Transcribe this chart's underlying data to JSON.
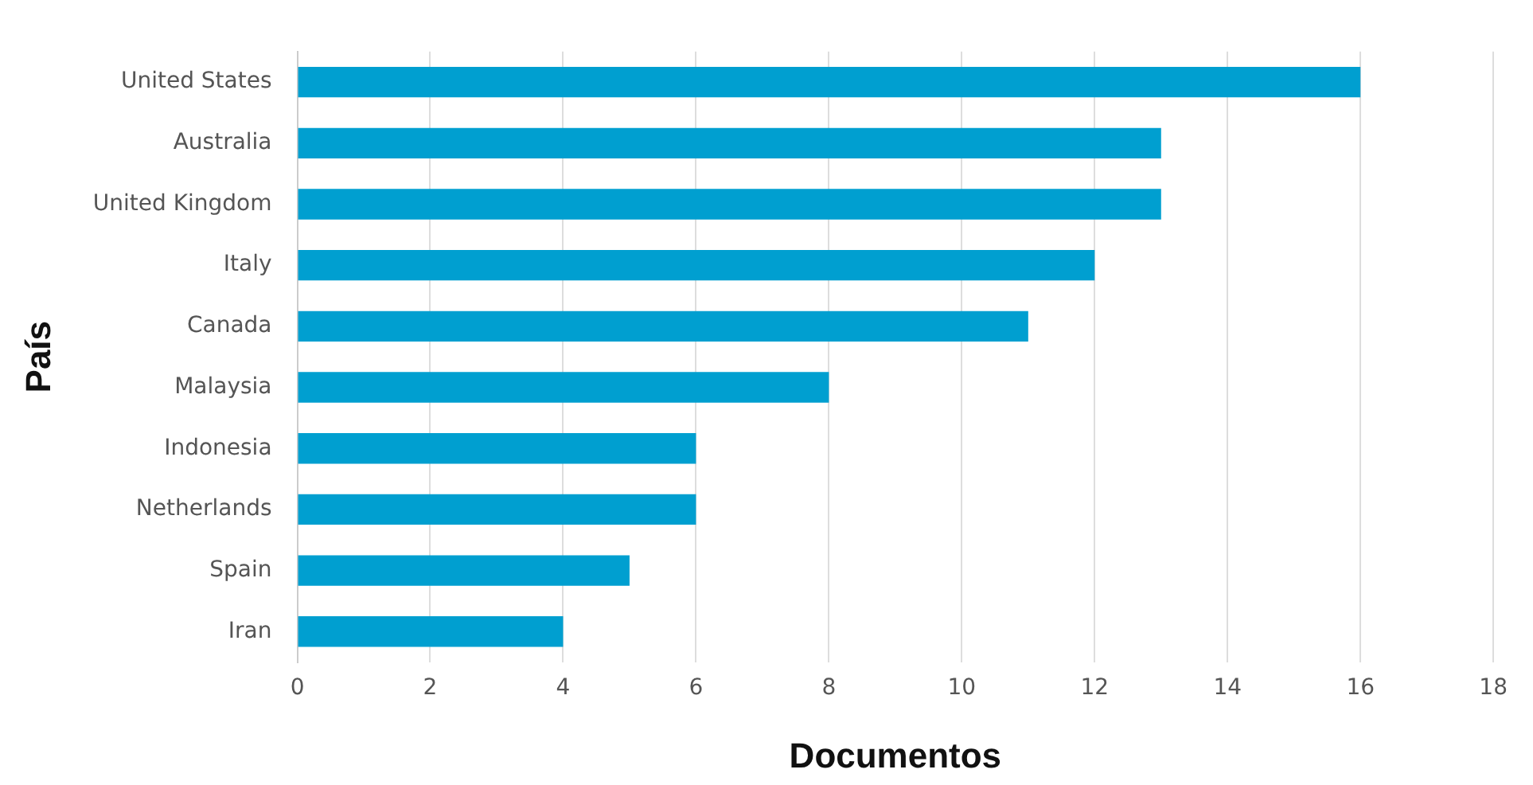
{
  "chart_data": {
    "type": "bar",
    "orientation": "horizontal",
    "xlabel": "Documentos",
    "ylabel": "País",
    "categories": [
      "United States",
      "Australia",
      "United Kingdom",
      "Italy",
      "Canada",
      "Malaysia",
      "Indonesia",
      "Netherlands",
      "Spain",
      "Iran"
    ],
    "values": [
      16,
      13,
      13,
      12,
      11,
      8,
      6,
      6,
      5,
      4
    ],
    "color": "#009fd0",
    "xlim": [
      0,
      18
    ],
    "xticks": [
      0,
      2,
      4,
      6,
      8,
      10,
      12,
      14,
      16,
      18
    ],
    "grid": "x",
    "legend": false
  }
}
